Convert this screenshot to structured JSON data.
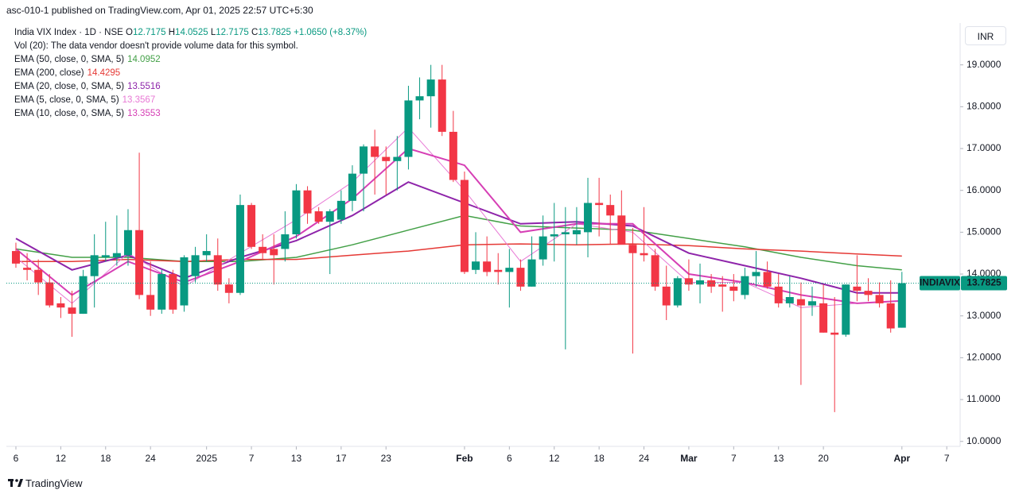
{
  "header": {
    "published": "asc-010-1 published on TradingView.com, Apr 01, 2025 22:57 UTC+5:30",
    "currency": "INR",
    "brand": "TradingView"
  },
  "chart_data": {
    "type": "candlestick",
    "title": "India VIX Index · 1D · NSE",
    "ohlc_labels": [
      "O",
      "H",
      "L",
      "C"
    ],
    "change_text": "+1.0650 (+8.37%)",
    "volume_note": "Vol (20): The data vendor doesn't provide volume data for this symbol.",
    "symbol": "INDIAVIX",
    "up_color": "#089981",
    "down_color": "#f23645",
    "open": [
      14.55,
      14.15,
      14.1,
      13.8,
      13.3,
      13.2,
      13.05,
      13.95,
      14.4,
      14.4,
      14.45,
      15.05,
      13.5,
      13.15,
      14.0,
      13.25,
      13.95,
      14.45,
      14.45,
      13.75,
      13.55,
      15.65,
      14.65,
      14.6,
      14.6,
      14.95,
      16.0,
      15.5,
      15.25,
      15.3,
      15.75,
      16.4,
      17.05,
      16.8,
      16.7,
      16.8,
      18.15,
      18.25,
      18.65,
      17.4,
      16.25,
      14.1,
      14.3,
      14.1,
      14.05,
      14.15,
      13.7,
      14.35,
      14.9,
      14.95,
      14.95,
      15.0,
      15.7,
      15.65,
      15.4,
      14.7,
      14.5,
      14.45,
      13.7,
      13.25,
      13.9,
      13.75,
      13.85,
      13.75,
      13.7,
      13.5,
      13.95,
      14.05,
      13.7,
      13.3,
      13.4,
      13.25,
      13.3,
      12.6,
      12.55,
      13.7,
      13.6,
      13.5,
      13.3,
      12.7175
    ],
    "high": [
      14.75,
      14.5,
      14.35,
      14.0,
      13.45,
      13.6,
      14.1,
      14.95,
      15.25,
      15.4,
      15.55,
      16.9,
      14.3,
      14.1,
      14.1,
      14.45,
      14.65,
      14.95,
      14.85,
      13.9,
      15.9,
      15.7,
      14.95,
      14.95,
      15.5,
      16.15,
      16.1,
      15.6,
      15.55,
      16.0,
      16.6,
      17.1,
      17.45,
      17.05,
      17.3,
      18.5,
      18.7,
      19.0,
      19.0,
      17.9,
      16.45,
      15.0,
      14.9,
      14.5,
      14.6,
      14.35,
      14.9,
      15.4,
      15.7,
      15.6,
      15.6,
      16.3,
      16.3,
      15.9,
      16.0,
      15.1,
      15.6,
      14.6,
      14.2,
      13.95,
      14.35,
      14.25,
      14.0,
      13.95,
      14.0,
      14.15,
      14.55,
      14.3,
      14.0,
      13.95,
      13.8,
      13.7,
      13.75,
      13.45,
      13.75,
      14.45,
      13.9,
      13.8,
      13.85,
      14.0525
    ],
    "low": [
      14.15,
      13.85,
      13.5,
      13.2,
      12.95,
      12.5,
      13.05,
      13.2,
      14.3,
      14.2,
      14.2,
      13.4,
      13.0,
      13.05,
      13.05,
      13.1,
      13.8,
      14.3,
      13.6,
      13.3,
      13.5,
      14.6,
      14.35,
      13.75,
      14.3,
      14.85,
      15.2,
      15.2,
      14.0,
      15.2,
      15.5,
      15.5,
      15.9,
      15.9,
      16.0,
      16.5,
      17.7,
      17.5,
      17.3,
      16.2,
      14.0,
      14.0,
      13.95,
      13.75,
      13.2,
      13.6,
      13.7,
      14.2,
      14.3,
      12.2,
      14.7,
      14.4,
      14.9,
      14.7,
      14.8,
      12.1,
      14.3,
      13.6,
      12.9,
      13.2,
      13.6,
      13.3,
      13.55,
      13.1,
      13.35,
      13.4,
      13.7,
      13.65,
      13.2,
      13.2,
      11.35,
      13.0,
      12.6,
      10.7,
      12.5,
      13.35,
      13.35,
      13.2,
      12.6,
      12.7175
    ],
    "close": [
      14.25,
      14.1,
      13.8,
      13.25,
      13.2,
      13.05,
      13.95,
      14.45,
      14.45,
      14.5,
      15.05,
      13.5,
      13.15,
      14.0,
      13.15,
      14.4,
      14.45,
      14.55,
      13.75,
      13.55,
      15.65,
      14.65,
      14.5,
      14.45,
      14.95,
      16.0,
      15.45,
      15.25,
      15.5,
      15.75,
      16.4,
      17.05,
      16.8,
      16.7,
      16.8,
      18.15,
      18.25,
      18.65,
      17.4,
      16.25,
      14.05,
      14.3,
      14.05,
      14.05,
      14.15,
      13.7,
      14.35,
      14.9,
      14.95,
      15.0,
      15.05,
      15.7,
      15.65,
      15.4,
      14.7,
      14.5,
      14.45,
      13.7,
      13.25,
      13.9,
      13.75,
      13.85,
      13.7,
      13.7,
      13.6,
      13.95,
      14.05,
      13.7,
      13.3,
      13.45,
      13.25,
      13.35,
      12.6,
      12.55,
      13.75,
      13.6,
      13.5,
      13.3,
      12.7,
      13.7825
    ],
    "overlays": [
      {
        "name": "EMA (50, close, 0, SMA, 5)",
        "color": "#43a047",
        "width": 1.5,
        "last_value": 14.0952,
        "x": [
          0,
          5,
          10,
          15,
          20,
          25,
          30,
          35,
          40,
          45,
          50,
          55,
          60,
          65,
          70,
          75,
          79
        ],
        "values": [
          14.6,
          14.4,
          14.4,
          14.3,
          14.3,
          14.4,
          14.7,
          15.05,
          15.4,
          15.15,
          15.1,
          15.05,
          14.85,
          14.65,
          14.4,
          14.2,
          14.1
        ]
      },
      {
        "name": "EMA (200, close)",
        "color": "#e53935",
        "width": 1.5,
        "last_value": 14.4295,
        "x": [
          0,
          5,
          10,
          15,
          20,
          25,
          30,
          35,
          40,
          45,
          50,
          55,
          60,
          65,
          70,
          75,
          79
        ],
        "values": [
          14.3,
          14.3,
          14.35,
          14.3,
          14.35,
          14.35,
          14.45,
          14.55,
          14.7,
          14.72,
          14.7,
          14.72,
          14.68,
          14.6,
          14.55,
          14.48,
          14.43
        ]
      },
      {
        "name": "EMA (20, close, 0, SMA, 5)",
        "color": "#8e24aa",
        "width": 2,
        "last_value": 13.5516,
        "x": [
          0,
          5,
          10,
          15,
          20,
          25,
          30,
          35,
          40,
          45,
          50,
          55,
          60,
          65,
          70,
          75,
          79
        ],
        "values": [
          14.85,
          14.1,
          14.45,
          13.9,
          14.4,
          14.8,
          15.4,
          16.2,
          15.7,
          15.2,
          15.25,
          15.15,
          14.5,
          14.2,
          13.9,
          13.55,
          13.55
        ]
      },
      {
        "name": "EMA (5, close, 0, SMA, 5)",
        "color": "#e879d5",
        "width": 1,
        "last_value": 13.3567,
        "x": [
          0,
          5,
          10,
          15,
          20,
          25,
          30,
          35,
          40,
          45,
          50,
          55,
          60,
          65,
          70,
          75,
          79
        ],
        "values": [
          14.4,
          13.3,
          14.5,
          13.7,
          14.5,
          15.3,
          16.2,
          17.5,
          16.0,
          14.3,
          15.2,
          15.0,
          13.8,
          13.8,
          13.2,
          13.3,
          13.36
        ]
      },
      {
        "name": "EMA (10, close, 0, SMA, 5)",
        "color": "#d63fb5",
        "width": 2,
        "last_value": 13.3553,
        "x": [
          0,
          5,
          10,
          15,
          20,
          25,
          30,
          35,
          40,
          45,
          50,
          55,
          60,
          65,
          70,
          75,
          79
        ],
        "values": [
          14.6,
          13.5,
          14.3,
          13.8,
          14.3,
          14.9,
          15.8,
          17.0,
          16.6,
          15.0,
          15.2,
          15.2,
          14.0,
          13.8,
          13.5,
          13.3,
          13.36
        ]
      }
    ],
    "xlim": [
      -0.85,
      84.05
    ],
    "xticks": [
      {
        "value": 0,
        "label": "6"
      },
      {
        "value": 4,
        "label": "12"
      },
      {
        "value": 8,
        "label": "18"
      },
      {
        "value": 12,
        "label": "24"
      },
      {
        "value": 17,
        "label": "2025"
      },
      {
        "value": 21,
        "label": "7"
      },
      {
        "value": 25,
        "label": "13"
      },
      {
        "value": 29,
        "label": "17"
      },
      {
        "value": 33,
        "label": "23"
      },
      {
        "value": 40,
        "label": "Feb"
      },
      {
        "value": 44,
        "label": "6"
      },
      {
        "value": 48,
        "label": "12"
      },
      {
        "value": 52,
        "label": "18"
      },
      {
        "value": 56,
        "label": "24"
      },
      {
        "value": 60,
        "label": "Mar"
      },
      {
        "value": 64,
        "label": "7"
      },
      {
        "value": 68,
        "label": "13"
      },
      {
        "value": 72,
        "label": "20"
      },
      {
        "value": 79,
        "label": "Apr"
      },
      {
        "value": 83,
        "label": "7"
      }
    ],
    "ylim": [
      9.9,
      20
    ],
    "yticks": [
      {
        "value": 10,
        "label": "10.0000"
      },
      {
        "value": 11,
        "label": "11.0000"
      },
      {
        "value": 12,
        "label": "12.0000"
      },
      {
        "value": 13,
        "label": "13.0000"
      },
      {
        "value": 14,
        "label": "14.0000"
      },
      {
        "value": 15,
        "label": "15.0000"
      },
      {
        "value": 16,
        "label": "16.0000"
      },
      {
        "value": 17,
        "label": "17.0000"
      },
      {
        "value": 18,
        "label": "18.0000"
      },
      {
        "value": 19,
        "label": "19.0000"
      }
    ],
    "grid": false
  }
}
